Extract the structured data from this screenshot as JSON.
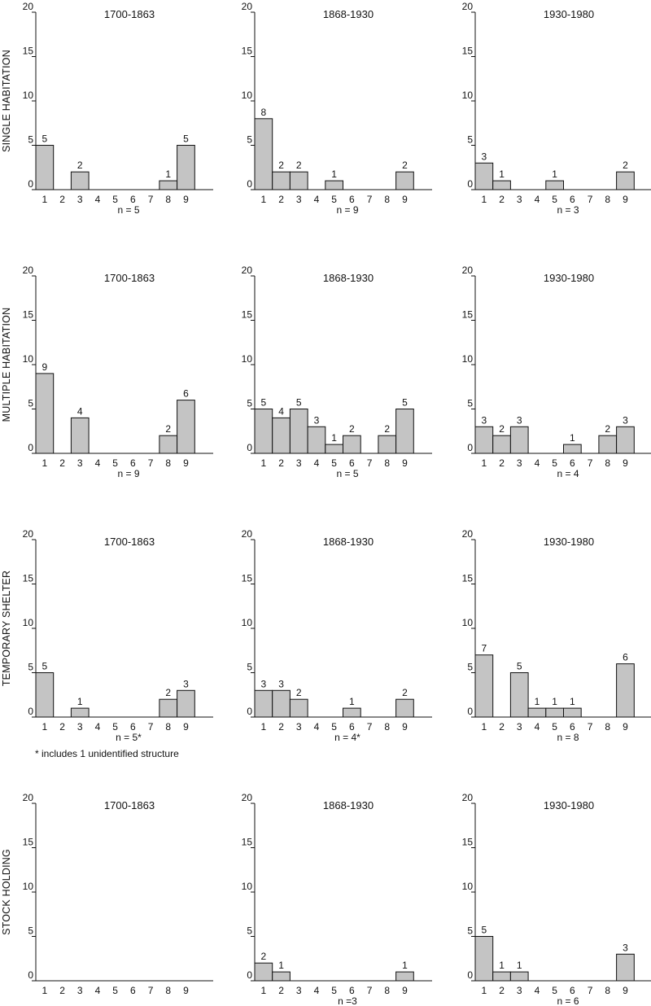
{
  "chart_data": [
    {
      "type": "bar",
      "row": "SINGLE HABITATION",
      "title": "1700-1863",
      "categories": [
        "1",
        "2",
        "3",
        "4",
        "5",
        "6",
        "7",
        "8",
        "9"
      ],
      "values": [
        5,
        0,
        2,
        0,
        0,
        0,
        0,
        1,
        5
      ],
      "n_label": "n = 5",
      "ylim": [
        0,
        20
      ],
      "yticks": [
        0,
        5,
        10,
        15,
        20
      ]
    },
    {
      "type": "bar",
      "row": "SINGLE HABITATION",
      "title": "1868-1930",
      "categories": [
        "1",
        "2",
        "3",
        "4",
        "5",
        "6",
        "7",
        "8",
        "9"
      ],
      "values": [
        8,
        2,
        2,
        0,
        1,
        0,
        0,
        0,
        2
      ],
      "n_label": "n = 9",
      "ylim": [
        0,
        20
      ],
      "yticks": [
        0,
        5,
        10,
        15,
        20
      ]
    },
    {
      "type": "bar",
      "row": "SINGLE HABITATION",
      "title": "1930-1980",
      "categories": [
        "1",
        "2",
        "3",
        "4",
        "5",
        "6",
        "7",
        "8",
        "9"
      ],
      "values": [
        3,
        1,
        0,
        0,
        1,
        0,
        0,
        0,
        2
      ],
      "n_label": "n = 3",
      "ylim": [
        0,
        20
      ],
      "yticks": [
        0,
        5,
        10,
        15,
        20
      ]
    },
    {
      "type": "bar",
      "row": "MULTIPLE HABITATION",
      "title": "1700-1863",
      "categories": [
        "1",
        "2",
        "3",
        "4",
        "5",
        "6",
        "7",
        "8",
        "9"
      ],
      "values": [
        9,
        0,
        4,
        0,
        0,
        0,
        0,
        2,
        6
      ],
      "n_label": "n = 9",
      "ylim": [
        0,
        20
      ],
      "yticks": [
        0,
        5,
        10,
        15,
        20
      ]
    },
    {
      "type": "bar",
      "row": "MULTIPLE HABITATION",
      "title": "1868-1930",
      "categories": [
        "1",
        "2",
        "3",
        "4",
        "5",
        "6",
        "7",
        "8",
        "9"
      ],
      "values": [
        5,
        4,
        5,
        3,
        1,
        2,
        0,
        2,
        5
      ],
      "n_label": "n = 5",
      "ylim": [
        0,
        20
      ],
      "yticks": [
        0,
        5,
        10,
        15,
        20
      ]
    },
    {
      "type": "bar",
      "row": "MULTIPLE HABITATION",
      "title": "1930-1980",
      "categories": [
        "1",
        "2",
        "3",
        "4",
        "5",
        "6",
        "7",
        "8",
        "9"
      ],
      "values": [
        3,
        2,
        3,
        0,
        0,
        1,
        0,
        2,
        3
      ],
      "n_label": "n = 4",
      "ylim": [
        0,
        20
      ],
      "yticks": [
        0,
        5,
        10,
        15,
        20
      ]
    },
    {
      "type": "bar",
      "row": "TEMPORARY SHELTER",
      "title": "1700-1863",
      "categories": [
        "1",
        "2",
        "3",
        "4",
        "5",
        "6",
        "7",
        "8",
        "9"
      ],
      "values": [
        5,
        0,
        1,
        0,
        0,
        0,
        0,
        2,
        3
      ],
      "n_label": "n = 5*",
      "ylim": [
        0,
        20
      ],
      "yticks": [
        0,
        5,
        10,
        15,
        20
      ]
    },
    {
      "type": "bar",
      "row": "TEMPORARY SHELTER",
      "title": "1868-1930",
      "categories": [
        "1",
        "2",
        "3",
        "4",
        "5",
        "6",
        "7",
        "8",
        "9"
      ],
      "values": [
        3,
        3,
        2,
        0,
        0,
        1,
        0,
        0,
        2
      ],
      "n_label": "n = 4*",
      "ylim": [
        0,
        20
      ],
      "yticks": [
        0,
        5,
        10,
        15,
        20
      ]
    },
    {
      "type": "bar",
      "row": "TEMPORARY SHELTER",
      "title": "1930-1980",
      "categories": [
        "1",
        "2",
        "3",
        "4",
        "5",
        "6",
        "7",
        "8",
        "9"
      ],
      "values": [
        7,
        0,
        5,
        1,
        1,
        1,
        0,
        0,
        6
      ],
      "n_label": "n = 8",
      "ylim": [
        0,
        20
      ],
      "yticks": [
        0,
        5,
        10,
        15,
        20
      ]
    },
    {
      "type": "bar",
      "row": "STOCK HOLDING",
      "title": "1700-1863",
      "categories": [
        "1",
        "2",
        "3",
        "4",
        "5",
        "6",
        "7",
        "8",
        "9"
      ],
      "values": [
        0,
        0,
        0,
        0,
        0,
        0,
        0,
        0,
        0
      ],
      "n_label": "",
      "ylim": [
        0,
        20
      ],
      "yticks": [
        0,
        5,
        10,
        15,
        20
      ]
    },
    {
      "type": "bar",
      "row": "STOCK HOLDING",
      "title": "1868-1930",
      "categories": [
        "1",
        "2",
        "3",
        "4",
        "5",
        "6",
        "7",
        "8",
        "9"
      ],
      "values": [
        2,
        1,
        0,
        0,
        0,
        0,
        0,
        0,
        1
      ],
      "n_label": "n =3",
      "ylim": [
        0,
        20
      ],
      "yticks": [
        0,
        5,
        10,
        15,
        20
      ]
    },
    {
      "type": "bar",
      "row": "STOCK HOLDING",
      "title": "1930-1980",
      "categories": [
        "1",
        "2",
        "3",
        "4",
        "5",
        "6",
        "7",
        "8",
        "9"
      ],
      "values": [
        5,
        1,
        1,
        0,
        0,
        0,
        0,
        0,
        3
      ],
      "n_label": "n = 6",
      "ylim": [
        0,
        20
      ],
      "yticks": [
        0,
        5,
        10,
        15,
        20
      ]
    }
  ],
  "row_labels": [
    "SINGLE HABITATION",
    "MULTIPLE HABITATION",
    "TEMPORARY SHELTER",
    "STOCK HOLDING"
  ],
  "footnote": "* includes 1 unidentified structure",
  "colors": {
    "bar_fill": "#c4c4c4",
    "bar_stroke": "#111111",
    "axis": "#111111",
    "text": "#111111"
  }
}
